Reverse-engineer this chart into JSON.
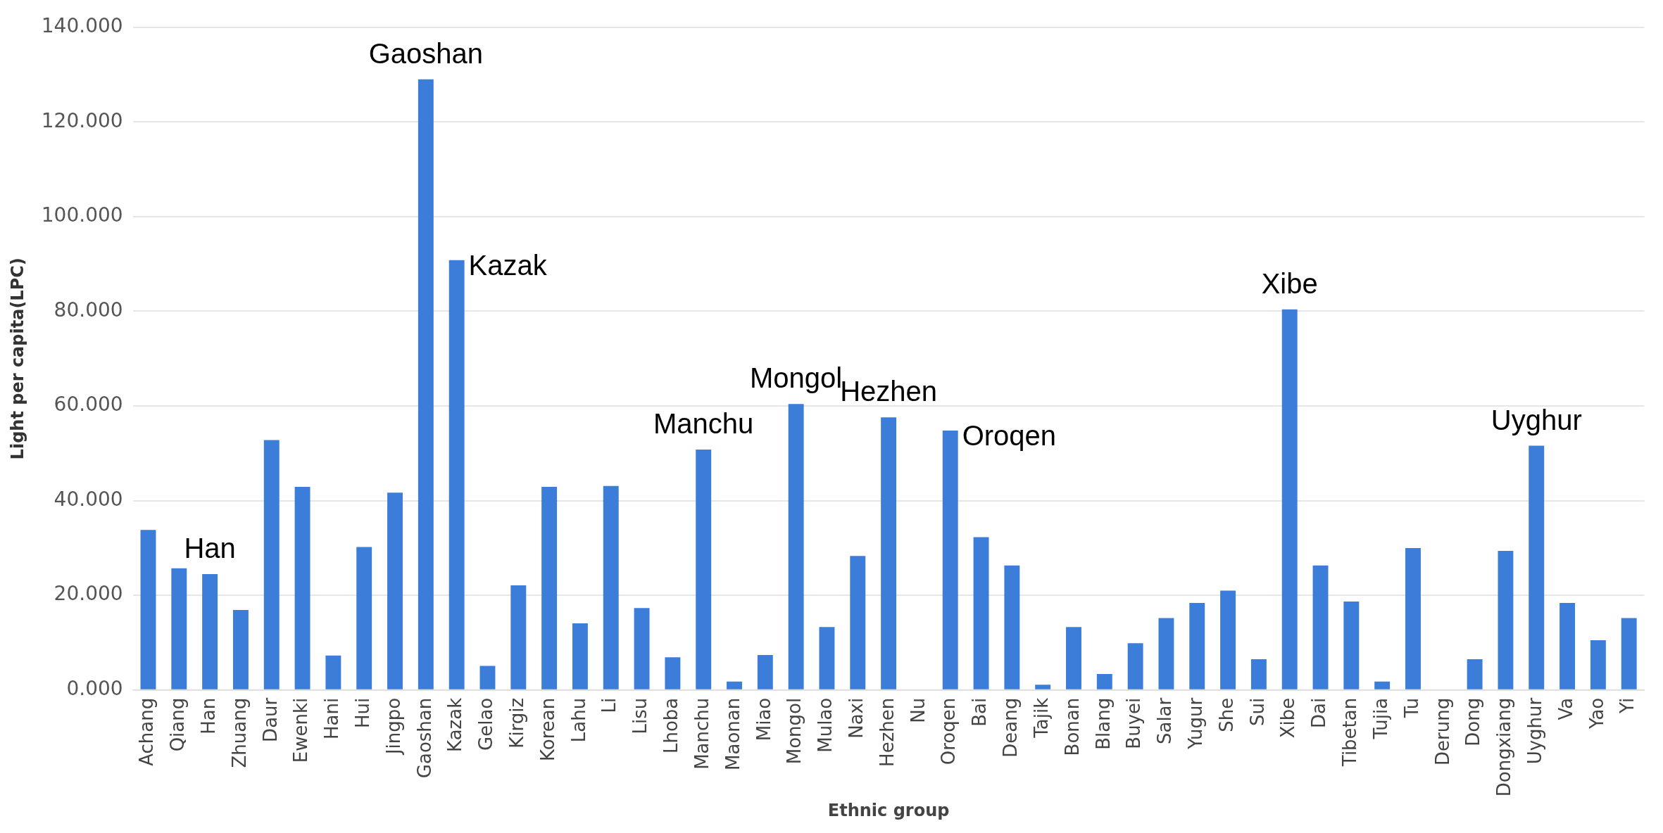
{
  "chart_data": {
    "type": "bar",
    "xlabel": "Ethnic group",
    "ylabel": "Light per capita(LPC)",
    "categories": [
      "Achang",
      "Qiang",
      "Han",
      "Zhuang",
      "Daur",
      "Ewenki",
      "Hani",
      "Hui",
      "Jingpo",
      "Gaoshan",
      "Kazak",
      "Gelao",
      "Kirgiz",
      "Korean",
      "Lahu",
      "Li",
      "Lisu",
      "Lhoba",
      "Manchu",
      "Maonan",
      "Miao",
      "Mongol",
      "Mulao",
      "Naxi",
      "Hezhen",
      "Nu",
      "Oroqen",
      "Bai",
      "Deang",
      "Tajik",
      "Bonan",
      "Blang",
      "Buyei",
      "Salar",
      "Yugur",
      "She",
      "Sui",
      "Xibe",
      "Dai",
      "Tibetan",
      "Tujia",
      "Tu",
      "Derung",
      "Dong",
      "Dongxiang",
      "Uyghur",
      "Va",
      "Yao",
      "Yi"
    ],
    "values": [
      33.8,
      25.7,
      24.5,
      16.9,
      52.8,
      42.9,
      7.3,
      30.2,
      41.7,
      129,
      90.8,
      5.1,
      22.1,
      42.9,
      14.1,
      43.1,
      17.3,
      6.9,
      50.8,
      1.8,
      7.4,
      60.4,
      13.3,
      28.3,
      57.6,
      0,
      54.8,
      32.3,
      26.3,
      1.1,
      13.3,
      3.4,
      9.9,
      15.2,
      18.4,
      21.0,
      6.5,
      80.4,
      26.3,
      18.7,
      1.8,
      30.0,
      0,
      6.5,
      29.4,
      51.6,
      18.4,
      10.5,
      15.2
    ],
    "color": "#3b7dd8",
    "ylim": [
      0,
      140
    ],
    "yticks": [
      {
        "value": 0,
        "label": "0.000"
      },
      {
        "value": 20,
        "label": "20.000"
      },
      {
        "value": 40,
        "label": "40.000"
      },
      {
        "value": 60,
        "label": "60.000"
      },
      {
        "value": 80,
        "label": "80.000"
      },
      {
        "value": 100,
        "label": "100.000"
      },
      {
        "value": 120,
        "label": "120.000"
      },
      {
        "value": 140,
        "label": "140.000"
      }
    ],
    "grid": "y",
    "legend": false,
    "annotations": [
      {
        "text": "Gaoshan",
        "x": "Gaoshan",
        "y": 129
      },
      {
        "text": "Kazak",
        "x": "Kazak",
        "y": 90.8
      },
      {
        "text": "Han",
        "x": "Han",
        "y": 24.5
      },
      {
        "text": "Manchu",
        "x": "Manchu",
        "y": 50.8
      },
      {
        "text": "Mongol",
        "x": "Mongol",
        "y": 60.4
      },
      {
        "text": "Hezhen",
        "x": "Hezhen",
        "y": 57.6
      },
      {
        "text": "Oroqen",
        "x": "Oroqen",
        "y": 54.8
      },
      {
        "text": "Xibe",
        "x": "Xibe",
        "y": 80.4
      },
      {
        "text": "Uyghur",
        "x": "Uyghur",
        "y": 51.6
      }
    ]
  }
}
